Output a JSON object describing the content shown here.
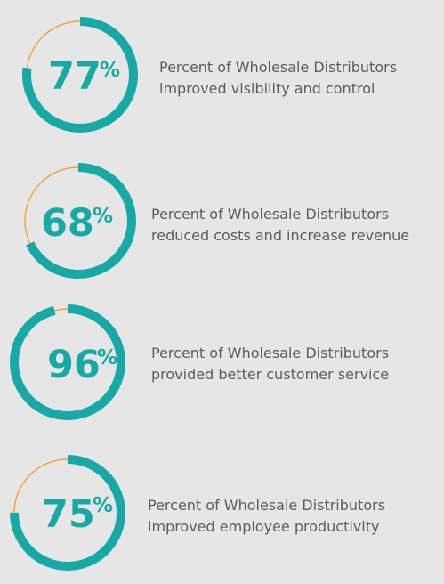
{
  "colors": {
    "ring": "#17a9a5",
    "remainder": "#f0a23a",
    "text": "#5a5c60",
    "background": "#e6e6e6"
  },
  "chart_data": {
    "type": "donut",
    "title": "",
    "items": [
      {
        "value": 77,
        "unit": "%",
        "label_line1": "Percent of Wholesale Distributors",
        "label_line2": "improved visibility and control"
      },
      {
        "value": 68,
        "unit": "%",
        "label_line1": "Percent of Wholesale Distributors",
        "label_line2": "reduced costs and increase revenue"
      },
      {
        "value": 96,
        "unit": "%",
        "label_line1": "Percent of Wholesale Distributors",
        "label_line2": "provided better customer service"
      },
      {
        "value": 75,
        "unit": "%",
        "label_line1": "Percent of Wholesale Distributors",
        "label_line2": "improved employee productivity"
      }
    ]
  }
}
